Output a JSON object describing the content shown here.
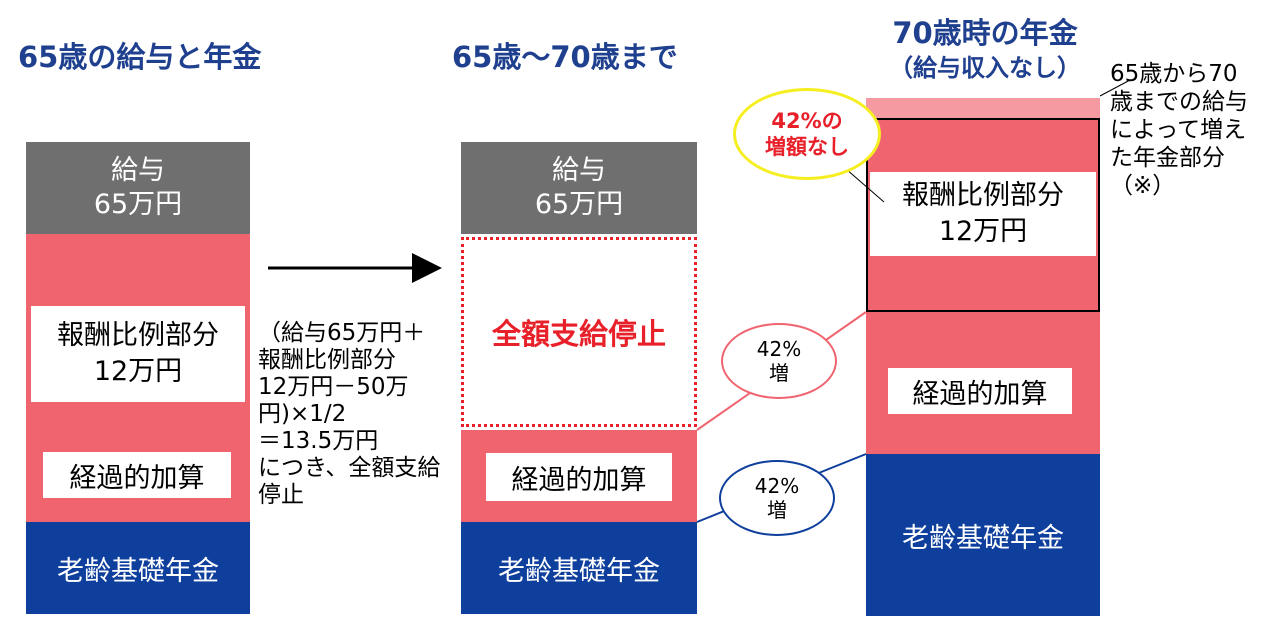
{
  "headings": {
    "col1": "65歳の給与と年金",
    "col2": "65歳～70歳まで",
    "col3_line1": "70歳時の年金",
    "col3_line2": "（給与収入なし）"
  },
  "col1": {
    "salary_line1": "給与",
    "salary_line2": "65万円",
    "remuneration_line1": "報酬比例部分",
    "remuneration_line2": "12万円",
    "transitional": "経過的加算",
    "basic": "老齢基礎年金"
  },
  "calc_note": "（給与65万円＋\n報酬比例部分\n12万円－50万\n円)×1/2\n＝13.5万円\nにつき、全額支給\n停止",
  "col2": {
    "salary_line1": "給与",
    "salary_line2": "65万円",
    "stopped": "全額支給停止",
    "transitional": "経過的加算",
    "basic": "老齢基礎年金"
  },
  "col3": {
    "remuneration_line1": "報酬比例部分",
    "remuneration_line2": "12万円",
    "transitional": "経過的加算",
    "basic": "老齢基礎年金"
  },
  "bubbles": {
    "increase_upper_line1": "42%",
    "increase_upper_line2": "増",
    "increase_lower_line1": "42%",
    "increase_lower_line2": "増",
    "no_increase_line1": "42%の",
    "no_increase_line2": "増額なし"
  },
  "side_note": "65歳から70\n歳までの給与\nによって増え\nた年金部分\n（※）",
  "colors": {
    "heading": "#1f3f8f",
    "salary": "#6f6f6f",
    "pension_pink": "#f0646f",
    "basic_navy": "#0e3f9c",
    "stop_red": "#e8202a",
    "increase_light_pink": "#f59aa0",
    "callout_yellow": "#f5ee20"
  }
}
